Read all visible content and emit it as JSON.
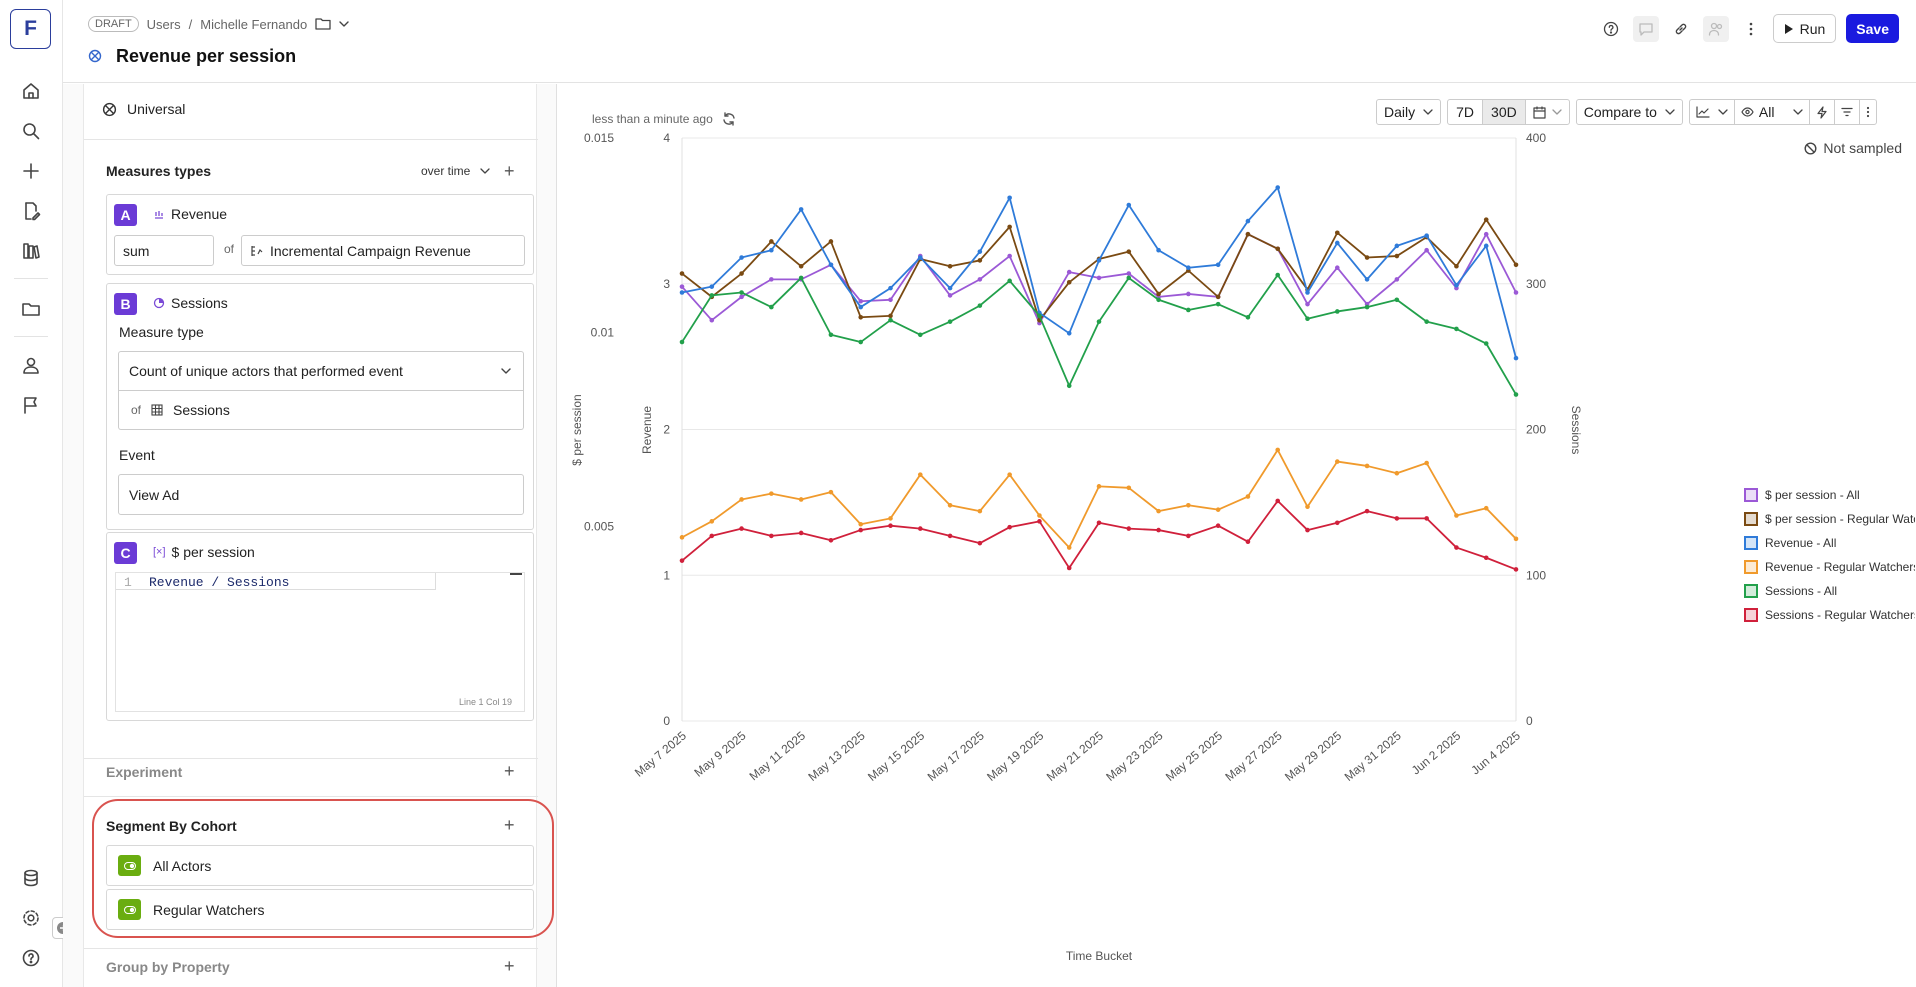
{
  "app": {
    "logo_letter": "F"
  },
  "header": {
    "draft_label": "DRAFT",
    "crumb_1": "Users",
    "crumb_sep": "/",
    "crumb_2": "Michelle Fernando",
    "title": "Revenue per session",
    "run_label": "Run",
    "save_label": "Save"
  },
  "left_panel": {
    "universal_label": "Universal",
    "measures_title": "Measures types",
    "over_time_label": "over time",
    "measure_a": {
      "badge": "A",
      "name": "Revenue",
      "agg": "sum",
      "of_label": "of",
      "field": "Incremental Campaign Revenue"
    },
    "measure_b": {
      "badge": "B",
      "name": "Sessions",
      "measure_type_label": "Measure type",
      "measure_type_value": "Count of unique actors that performed event",
      "of_label": "of",
      "of_value": "Sessions",
      "event_label": "Event",
      "event_value": "View Ad"
    },
    "measure_c": {
      "badge": "C",
      "name": "$ per session",
      "line_no": "1",
      "formula": "Revenue / Sessions",
      "cursor_status": "Line 1 Col 19"
    },
    "experiment_title": "Experiment",
    "segment_title": "Segment By Cohort",
    "segments": [
      "All Actors",
      "Regular Watchers"
    ],
    "group_title": "Group by Property"
  },
  "toolbar": {
    "updated_text": "less than a minute ago",
    "granularity": "Daily",
    "range_7d": "7D",
    "range_30d": "30D",
    "compare_label": "Compare to",
    "visibility_label": "All",
    "sampling_label": "Not sampled"
  },
  "colors": {
    "accent": "#1a1adf",
    "badge": "#6b3bd6",
    "cohort_toggle": "#6aad10",
    "highlight_ring": "#d9534f"
  },
  "chart_data": {
    "type": "line",
    "xlabel": "Time Bucket",
    "x_tick_labels": [
      "May 7 2025",
      "May 9 2025",
      "May 11 2025",
      "May 13 2025",
      "May 15 2025",
      "May 17 2025",
      "May 19 2025",
      "May 21 2025",
      "May 23 2025",
      "May 25 2025",
      "May 27 2025",
      "May 29 2025",
      "May 31 2025",
      "Jun 2 2025",
      "Jun 4 2025"
    ],
    "x": [
      "May 7 2025",
      "May 8 2025",
      "May 9 2025",
      "May 10 2025",
      "May 11 2025",
      "May 12 2025",
      "May 13 2025",
      "May 14 2025",
      "May 15 2025",
      "May 16 2025",
      "May 17 2025",
      "May 18 2025",
      "May 19 2025",
      "May 20 2025",
      "May 21 2025",
      "May 22 2025",
      "May 23 2025",
      "May 24 2025",
      "May 25 2025",
      "May 26 2025",
      "May 27 2025",
      "May 28 2025",
      "May 29 2025",
      "May 30 2025",
      "May 31 2025",
      "Jun 1 2025",
      "Jun 2 2025",
      "Jun 3 2025",
      "Jun 4 2025"
    ],
    "axes": {
      "per_session": {
        "label": "$ per session",
        "ticks": [
          "0.015",
          "0.01",
          "0.005"
        ],
        "ylim": [
          0,
          0.015
        ]
      },
      "revenue": {
        "label": "Revenue",
        "ticks": [
          "4",
          "3",
          "2",
          "1",
          "0"
        ],
        "ylim": [
          0,
          4
        ]
      },
      "sessions": {
        "label": "Sessions",
        "ticks": [
          "400",
          "300",
          "200",
          "100",
          "0"
        ],
        "ylim": [
          0,
          400
        ]
      }
    },
    "series": [
      {
        "name": "$ per session - All",
        "color": "#9b59d6",
        "axis": "revenue",
        "values": [
          2.98,
          2.75,
          2.91,
          3.03,
          3.03,
          3.13,
          2.88,
          2.89,
          3.19,
          2.92,
          3.03,
          3.19,
          2.73,
          3.08,
          3.04,
          3.07,
          2.91,
          2.93,
          2.91,
          3.34,
          3.24,
          2.86,
          3.11,
          2.86,
          3.03,
          3.23,
          2.97,
          3.34,
          2.94
        ]
      },
      {
        "name": "$ per session - Regular Watchers",
        "color": "#7a4a12",
        "axis": "revenue",
        "values": [
          3.07,
          2.91,
          3.07,
          3.29,
          3.12,
          3.29,
          2.77,
          2.78,
          3.17,
          3.12,
          3.16,
          3.39,
          2.75,
          3.01,
          3.17,
          3.22,
          2.93,
          3.09,
          2.91,
          3.34,
          3.24,
          2.96,
          3.35,
          3.18,
          3.19,
          3.32,
          3.12,
          3.44,
          3.13
        ]
      },
      {
        "name": "Revenue - All",
        "color": "#2f7bd9",
        "axis": "revenue",
        "values": [
          2.94,
          2.98,
          3.18,
          3.23,
          3.51,
          3.13,
          2.84,
          2.97,
          3.18,
          2.97,
          3.22,
          3.59,
          2.8,
          2.66,
          3.16,
          3.54,
          3.23,
          3.11,
          3.13,
          3.43,
          3.66,
          2.94,
          3.28,
          3.03,
          3.26,
          3.33,
          2.99,
          3.26,
          2.49
        ]
      },
      {
        "name": "Revenue - Regular Watchers",
        "color": "#f09a2c",
        "axis": "revenue",
        "values": [
          1.26,
          1.37,
          1.52,
          1.56,
          1.52,
          1.57,
          1.35,
          1.39,
          1.69,
          1.48,
          1.44,
          1.69,
          1.41,
          1.19,
          1.61,
          1.6,
          1.44,
          1.48,
          1.45,
          1.54,
          1.86,
          1.47,
          1.78,
          1.75,
          1.7,
          1.77,
          1.41,
          1.46,
          1.25
        ]
      },
      {
        "name": "Sessions - All",
        "color": "#22a04b",
        "axis": "sessions",
        "values": [
          260,
          292,
          294,
          284,
          304,
          265,
          260,
          275,
          265,
          274,
          285,
          302,
          278,
          230,
          274,
          304,
          289,
          282,
          286,
          277,
          306,
          276,
          281,
          284,
          289,
          274,
          269,
          259,
          224
        ]
      },
      {
        "name": "Sessions - Regular Watchers",
        "color": "#d0203b",
        "axis": "sessions",
        "values": [
          110,
          127,
          132,
          127,
          129,
          124,
          131,
          134,
          132,
          127,
          122,
          133,
          137,
          105,
          136,
          132,
          131,
          127,
          134,
          123,
          151,
          131,
          136,
          144,
          139,
          139,
          119,
          112,
          104
        ]
      }
    ]
  }
}
